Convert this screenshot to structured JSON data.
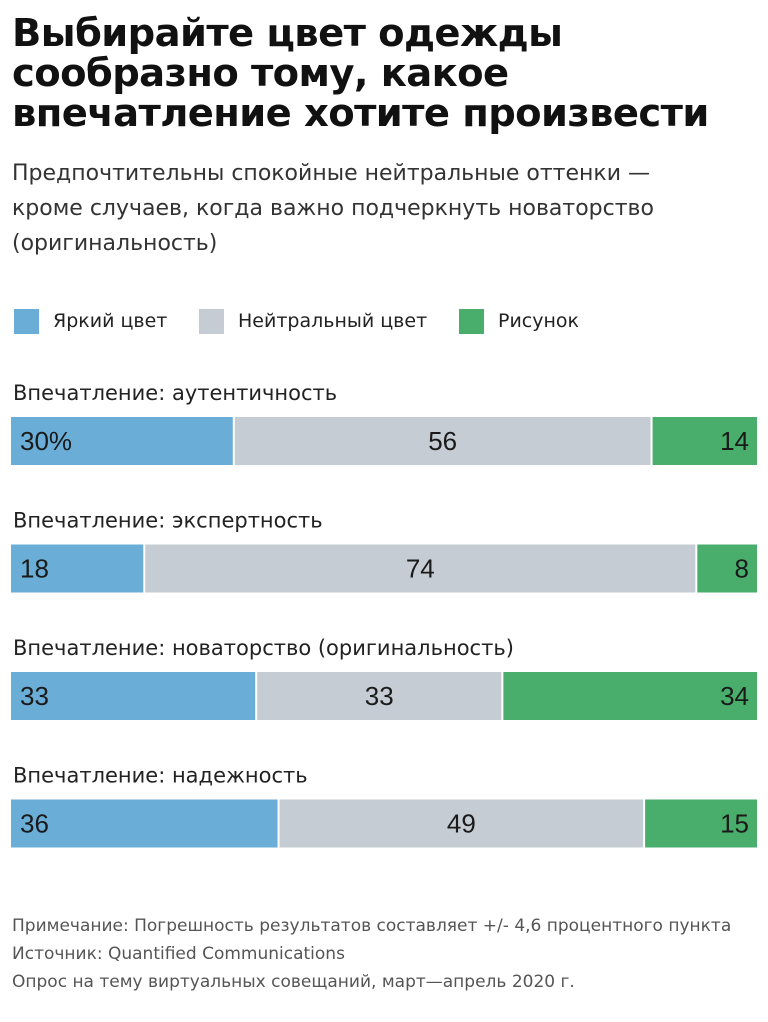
{
  "title_lines": [
    "Выбирайте цвет одежды",
    "сообразно тому, какое",
    "впечатление хотите произвести"
  ],
  "subtitle_lines": [
    "Предпочтительны спокойные нейтральные оттенки —",
    "кроме случаев, когда важно подчеркнуть новаторство",
    "(оригинальность)"
  ],
  "legend": [
    {
      "label": "Яркий цвет",
      "color": "#6aaed7"
    },
    {
      "label": "Нейтральный цвет",
      "color": "#c6ccd3"
    },
    {
      "label": "Рисунок",
      "color": "#49ae6b"
    }
  ],
  "chart_data": {
    "type": "bar",
    "stacked": true,
    "orientation": "horizontal",
    "unit": "%",
    "categories": [
      "Впечатление: аутентичность",
      "Впечатление: экспертность",
      "Впечатление: новаторство (оригинальность)",
      "Впечатление: надежность"
    ],
    "series": [
      {
        "name": "Яркий цвет",
        "color": "#6aaed7",
        "values": [
          30,
          18,
          33,
          36
        ]
      },
      {
        "name": "Нейтральный цвет",
        "color": "#c6ccd3",
        "values": [
          56,
          74,
          33,
          49
        ]
      },
      {
        "name": "Рисунок",
        "color": "#49ae6b",
        "values": [
          14,
          8,
          34,
          15
        ]
      }
    ],
    "data_labels": [
      [
        "30%",
        "56",
        "14"
      ],
      [
        "18",
        "74",
        "8"
      ],
      [
        "33",
        "33",
        "34"
      ],
      [
        "36",
        "49",
        "15"
      ]
    ],
    "xlim": [
      0,
      100
    ],
    "grid": false,
    "legend_position": "top-left"
  },
  "footer": {
    "note": "Примечание: Погрешность результатов составляет +/- 4,6 процентного пункта",
    "source": "Источник: Quantified Communications",
    "survey": "Опрос на тему виртуальных совещаний, март—апрель 2020 г."
  }
}
